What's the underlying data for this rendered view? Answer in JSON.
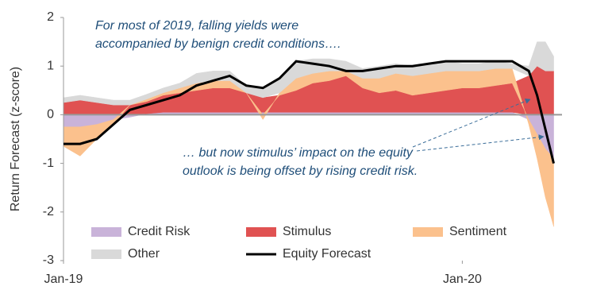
{
  "chart_data": {
    "type": "stacked_area_line",
    "ylabel": "Return Forecast (z-score)",
    "x": [
      0,
      0.5,
      1,
      1.5,
      2,
      2.5,
      3,
      3.5,
      4,
      4.5,
      5,
      5.5,
      6,
      6.5,
      7,
      7.5,
      8,
      8.5,
      9,
      9.5,
      10,
      10.5,
      11,
      11.5,
      12,
      12.5,
      13,
      13.5,
      14,
      14.25,
      14.5,
      14.75
    ],
    "xlim": [
      0,
      15
    ],
    "xticks": [
      {
        "value": 0,
        "label": "Jan-19"
      },
      {
        "value": 12,
        "label": "Jan-20"
      }
    ],
    "ylim": [
      -3,
      2
    ],
    "yticks": [
      -3,
      -2,
      -1,
      0,
      1,
      2
    ],
    "legend": "lower center",
    "series": [
      {
        "name": "Credit Risk",
        "color": "#c9b3d9",
        "values": [
          -0.25,
          -0.25,
          -0.2,
          -0.1,
          -0.05,
          0.02,
          0.05,
          0.05,
          0.05,
          0.05,
          0.05,
          0.05,
          0.05,
          0.05,
          0.05,
          0.05,
          0.05,
          0.05,
          0.05,
          0.05,
          0.05,
          0.05,
          0.05,
          0.05,
          0.05,
          0.05,
          0.05,
          0.05,
          -0.1,
          -0.4,
          -0.7,
          -0.9
        ]
      },
      {
        "name": "Stimulus",
        "color": "#e05252",
        "values": [
          0.25,
          0.3,
          0.25,
          0.2,
          0.2,
          0.25,
          0.35,
          0.4,
          0.45,
          0.5,
          0.5,
          0.4,
          0.3,
          0.35,
          0.45,
          0.6,
          0.65,
          0.75,
          0.5,
          0.4,
          0.45,
          0.35,
          0.4,
          0.45,
          0.5,
          0.5,
          0.55,
          0.6,
          0.8,
          1.0,
          0.9,
          0.9
        ]
      },
      {
        "name": "Sentiment",
        "color": "#fbc18d",
        "values": [
          -0.4,
          -0.6,
          -0.3,
          -0.1,
          0.0,
          0.05,
          0.05,
          0.1,
          0.15,
          0.15,
          0.15,
          0.0,
          -0.1,
          0.05,
          0.25,
          0.2,
          0.2,
          0.1,
          0.2,
          0.3,
          0.35,
          0.4,
          0.4,
          0.4,
          0.35,
          0.35,
          0.35,
          0.3,
          -0.1,
          -0.5,
          -1.0,
          -1.4
        ]
      },
      {
        "name": "Other",
        "color": "#d9d9d9",
        "values": [
          0.1,
          0.1,
          0.1,
          0.1,
          0.1,
          0.1,
          0.1,
          0.1,
          0.2,
          0.2,
          0.2,
          0.15,
          0.2,
          0.3,
          0.35,
          0.3,
          0.25,
          0.2,
          0.2,
          0.25,
          0.2,
          0.2,
          0.2,
          0.2,
          0.15,
          0.15,
          0.15,
          0.1,
          0.2,
          0.5,
          0.6,
          0.3
        ]
      },
      {
        "name": "Equity Forecast",
        "color": "#000000",
        "kind": "line",
        "values": [
          -0.6,
          -0.6,
          -0.5,
          -0.2,
          0.1,
          0.2,
          0.3,
          0.4,
          0.6,
          0.7,
          0.8,
          0.6,
          0.55,
          0.75,
          1.1,
          1.05,
          1.0,
          0.9,
          0.9,
          0.95,
          1.0,
          1.0,
          1.05,
          1.1,
          1.1,
          1.1,
          1.1,
          1.1,
          0.9,
          0.4,
          -0.3,
          -1.0
        ]
      }
    ],
    "annotations": [
      [
        "For most of 2019, falling yields were",
        "accompanied by benign credit conditions…."
      ],
      [
        "… but now stimulus’ impact on the equity",
        "outlook is being offset by rising credit risk."
      ]
    ]
  }
}
